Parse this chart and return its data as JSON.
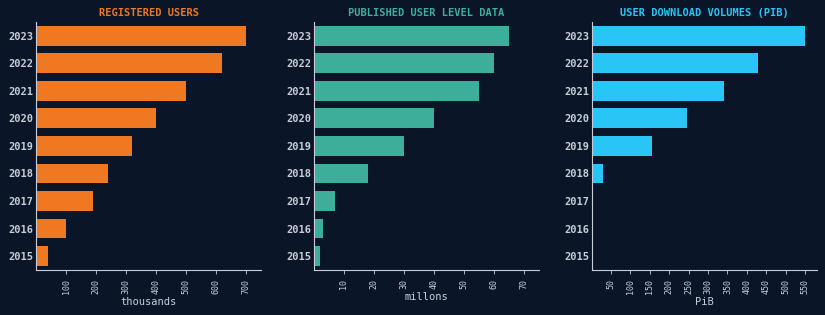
{
  "years": [
    "2023",
    "2022",
    "2021",
    "2020",
    "2019",
    "2018",
    "2017",
    "2016",
    "2015"
  ],
  "registered_users": [
    700,
    620,
    500,
    400,
    320,
    240,
    190,
    100,
    40
  ],
  "published_data": [
    65,
    60,
    55,
    40,
    30,
    18,
    7,
    3,
    2
  ],
  "downloads": [
    550,
    430,
    340,
    245,
    155,
    30,
    0,
    0,
    0
  ],
  "title1": "REGISTERED USERS",
  "title2": "PUBLISHED USER LEVEL DATA",
  "title3": "USER DOWNLOAD VOLUMES (PIB)",
  "xlabel1": "thousands",
  "xlabel2": "millons",
  "xlabel3": "PiB",
  "xticks1": [
    100,
    200,
    300,
    400,
    500,
    600,
    700
  ],
  "xticks2": [
    10,
    20,
    30,
    40,
    50,
    60,
    70
  ],
  "xticks3": [
    50,
    100,
    150,
    200,
    250,
    300,
    350,
    400,
    450,
    500,
    550
  ],
  "color1": "#F07820",
  "color2": "#3DAE9A",
  "color3": "#29C5F6",
  "title_color1": "#F07820",
  "title_color2": "#3DAE9A",
  "title_color3": "#29C5F6",
  "bg_color": "#0a1628",
  "text_color": "#c8cdd8",
  "bar_height": 0.72
}
